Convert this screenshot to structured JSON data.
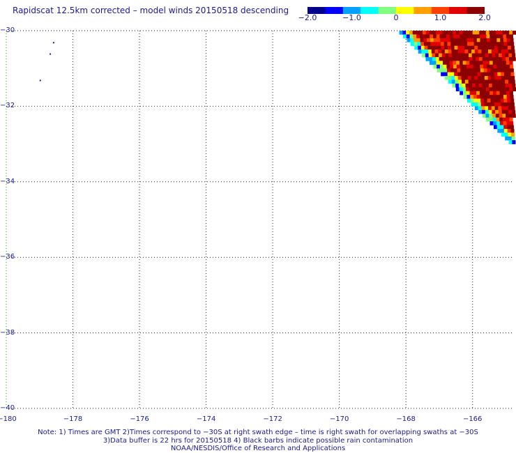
{
  "title": "Rapidscat 12.5km corrected – model winds 20150518 descending",
  "colorbar": {
    "min": -2.0,
    "max": 2.0,
    "ticks": [
      {
        "value": -2.0,
        "label": "−2.0"
      },
      {
        "value": -1.0,
        "label": "−1.0"
      },
      {
        "value": 0.0,
        "label": "0"
      },
      {
        "value": 1.0,
        "label": "1.0"
      },
      {
        "value": 2.0,
        "label": "2.0"
      }
    ],
    "colors": [
      "#00008b",
      "#0000ff",
      "#00a0ff",
      "#00ffff",
      "#80ff80",
      "#ffff00",
      "#ffa000",
      "#ff4000",
      "#e00000",
      "#8b0000"
    ]
  },
  "map": {
    "lon_range": [
      -180,
      -164.8
    ],
    "lat_range": [
      -40,
      -30
    ],
    "x_ticks": [
      {
        "value": -180,
        "label": "−180"
      },
      {
        "value": -178,
        "label": "−178"
      },
      {
        "value": -176,
        "label": "−176"
      },
      {
        "value": -174,
        "label": "−174"
      },
      {
        "value": -172,
        "label": "−172"
      },
      {
        "value": -170,
        "label": "−170"
      },
      {
        "value": -168,
        "label": "−168"
      },
      {
        "value": -166,
        "label": "−166"
      }
    ],
    "y_ticks": [
      {
        "value": -30,
        "label": "−30"
      },
      {
        "value": -32,
        "label": "−32"
      },
      {
        "value": -34,
        "label": "−34"
      },
      {
        "value": -36,
        "label": "−36"
      },
      {
        "value": -38,
        "label": "−38"
      },
      {
        "value": -40,
        "label": "−40"
      }
    ],
    "grid": "dotted",
    "swath": {
      "lon_start": -168.2,
      "lat_start": -30.0,
      "lon_end": -164.8,
      "lat_end": -33.0,
      "cell_deg": 0.1
    },
    "land_specks": [
      {
        "lon": -178.6,
        "lat": -30.3
      },
      {
        "lon": -178.7,
        "lat": -30.6
      },
      {
        "lon": -179.0,
        "lat": -31.3
      }
    ]
  },
  "notes": [
    "Note: 1) Times are GMT 2)Times correspond to −30S at right swath edge – time is right swath for overlapping swaths at −30S",
    "3)Data buffer is 22 hrs for 20150518 4) Black barbs indicate possible rain contamination",
    "NOAA/NESDIS/Office of Research and Applications"
  ]
}
